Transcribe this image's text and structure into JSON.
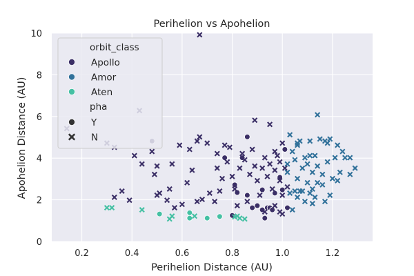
{
  "chart_data": {
    "type": "scatter",
    "title": "Perihelion vs Apohelion",
    "xlabel": "Perihelion Distance (AU)",
    "ylabel": "Apohelion Distance (AU)",
    "xlim": [
      0.08,
      1.36
    ],
    "ylim": [
      0,
      10
    ],
    "xticks": [
      "0.2",
      "0.4",
      "0.6",
      "0.8",
      "1.0",
      "1.2"
    ],
    "yticks": [
      "0",
      "2",
      "4",
      "6",
      "8",
      "10"
    ],
    "grid": true,
    "background": "#eaeaf2",
    "legend": {
      "position": "top-left",
      "hue_title": "orbit_class",
      "style_title": "pha",
      "hue_entries": [
        {
          "label": "Apollo",
          "color": "#3b2f66"
        },
        {
          "label": "Amor",
          "color": "#31719a"
        },
        {
          "label": "Aten",
          "color": "#45c0a3"
        }
      ],
      "style_entries": [
        {
          "label": "Y",
          "marker": "circle"
        },
        {
          "label": "N",
          "marker": "x"
        }
      ]
    },
    "series": [
      {
        "name": "Apollo",
        "pha": "Y",
        "color": "#3b2f66",
        "marker": "circle",
        "points": [
          [
            0.48,
            4.82
          ],
          [
            0.77,
            4.02
          ],
          [
            0.81,
            2.72
          ],
          [
            0.82,
            2.35
          ],
          [
            0.84,
            4.02
          ],
          [
            0.86,
            2.22
          ],
          [
            0.86,
            5.02
          ],
          [
            0.88,
            1.62
          ],
          [
            0.9,
            1.72
          ],
          [
            0.92,
            1.52
          ],
          [
            0.92,
            2.48
          ],
          [
            0.94,
            1.62
          ],
          [
            0.95,
            1.62
          ],
          [
            0.96,
            1.52
          ],
          [
            0.97,
            2.32
          ],
          [
            0.99,
            3.08
          ],
          [
            0.8,
            1.25
          ],
          [
            0.93,
            1.12
          ],
          [
            1.0,
            2.48
          ],
          [
            1.01,
            4.42
          ],
          [
            1.02,
            1.62
          ]
        ]
      },
      {
        "name": "Apollo",
        "pha": "N",
        "color": "#3b2f66",
        "marker": "x",
        "points": [
          [
            0.14,
            5.42
          ],
          [
            0.3,
            4.72
          ],
          [
            0.33,
            4.52
          ],
          [
            0.33,
            2.12
          ],
          [
            0.36,
            2.42
          ],
          [
            0.39,
            1.98
          ],
          [
            0.41,
            4.12
          ],
          [
            0.43,
            6.28
          ],
          [
            0.44,
            3.72
          ],
          [
            0.48,
            4.32
          ],
          [
            0.49,
            3.22
          ],
          [
            0.5,
            3.62
          ],
          [
            0.5,
            2.22
          ],
          [
            0.51,
            2.32
          ],
          [
            0.54,
            1.98
          ],
          [
            0.55,
            2.52
          ],
          [
            0.56,
            3.72
          ],
          [
            0.57,
            1.62
          ],
          [
            0.59,
            4.62
          ],
          [
            0.6,
            1.78
          ],
          [
            0.62,
            2.82
          ],
          [
            0.63,
            4.42
          ],
          [
            0.64,
            3.42
          ],
          [
            0.66,
            4.82
          ],
          [
            0.66,
            1.92
          ],
          [
            0.67,
            5.02
          ],
          [
            0.67,
            9.92
          ],
          [
            0.68,
            2.02
          ],
          [
            0.7,
            4.72
          ],
          [
            0.71,
            2.32
          ],
          [
            0.73,
            1.92
          ],
          [
            0.74,
            3.52
          ],
          [
            0.74,
            4.22
          ],
          [
            0.75,
            2.42
          ],
          [
            0.76,
            3.02
          ],
          [
            0.77,
            4.62
          ],
          [
            0.78,
            3.82
          ],
          [
            0.79,
            4.52
          ],
          [
            0.8,
            3.12
          ],
          [
            0.81,
            2.52
          ],
          [
            0.82,
            1.72
          ],
          [
            0.83,
            3.52
          ],
          [
            0.84,
            4.22
          ],
          [
            0.85,
            3.92
          ],
          [
            0.86,
            1.92
          ],
          [
            0.87,
            3.22
          ],
          [
            0.88,
            4.42
          ],
          [
            0.89,
            5.82
          ],
          [
            0.89,
            3.62
          ],
          [
            0.9,
            2.92
          ],
          [
            0.91,
            2.22
          ],
          [
            0.92,
            3.52
          ],
          [
            0.93,
            1.42
          ],
          [
            0.93,
            4.02
          ],
          [
            0.94,
            3.12
          ],
          [
            0.95,
            5.62
          ],
          [
            0.95,
            3.72
          ],
          [
            0.96,
            2.52
          ],
          [
            0.97,
            3.42
          ],
          [
            0.97,
            1.72
          ],
          [
            0.98,
            4.12
          ],
          [
            0.99,
            2.92
          ],
          [
            0.99,
            3.82
          ],
          [
            1.0,
            1.32
          ],
          [
            1.0,
            2.22
          ],
          [
            1.01,
            3.52
          ],
          [
            1.02,
            2.62
          ],
          [
            0.97,
            4.32
          ],
          [
            0.99,
            1.42
          ],
          [
            1.0,
            4.72
          ]
        ]
      },
      {
        "name": "Amor",
        "pha": "N",
        "color": "#31719a",
        "marker": "x",
        "points": [
          [
            1.02,
            3.72
          ],
          [
            1.02,
            3.32
          ],
          [
            1.03,
            5.12
          ],
          [
            1.03,
            2.32
          ],
          [
            1.04,
            4.32
          ],
          [
            1.04,
            1.52
          ],
          [
            1.05,
            3.92
          ],
          [
            1.05,
            2.42
          ],
          [
            1.06,
            4.62
          ],
          [
            1.06,
            2.12
          ],
          [
            1.06,
            3.02
          ],
          [
            1.07,
            4.82
          ],
          [
            1.07,
            2.42
          ],
          [
            1.08,
            3.52
          ],
          [
            1.09,
            4.02
          ],
          [
            1.09,
            1.92
          ],
          [
            1.1,
            2.82
          ],
          [
            1.1,
            3.72
          ],
          [
            1.11,
            4.12
          ],
          [
            1.11,
            2.32
          ],
          [
            1.11,
            4.82
          ],
          [
            1.12,
            1.82
          ],
          [
            1.12,
            3.32
          ],
          [
            1.12,
            2.52
          ],
          [
            1.13,
            4.12
          ],
          [
            1.13,
            2.12
          ],
          [
            1.14,
            3.62
          ],
          [
            1.14,
            6.08
          ],
          [
            1.14,
            2.82
          ],
          [
            1.15,
            4.92
          ],
          [
            1.16,
            3.22
          ],
          [
            1.16,
            2.72
          ],
          [
            1.17,
            4.82
          ],
          [
            1.17,
            1.92
          ],
          [
            1.18,
            3.82
          ],
          [
            1.18,
            4.72
          ],
          [
            1.19,
            2.22
          ],
          [
            1.19,
            4.92
          ],
          [
            1.2,
            3.02
          ],
          [
            1.21,
            4.02
          ],
          [
            1.22,
            2.92
          ],
          [
            1.22,
            4.62
          ],
          [
            1.23,
            3.32
          ],
          [
            1.24,
            4.32
          ],
          [
            1.25,
            4.02
          ],
          [
            1.27,
            4.02
          ],
          [
            1.27,
            3.22
          ],
          [
            1.29,
            3.52
          ],
          [
            1.06,
            4.72
          ],
          [
            1.08,
            2.42
          ]
        ]
      },
      {
        "name": "Aten",
        "pha": "Y",
        "color": "#45c0a3",
        "marker": "circle",
        "points": [
          [
            0.51,
            1.32
          ],
          [
            0.63,
            1.12
          ],
          [
            0.63,
            1.38
          ],
          [
            0.7,
            1.12
          ],
          [
            0.75,
            1.2
          ]
        ]
      },
      {
        "name": "Aten",
        "pha": "N",
        "color": "#45c0a3",
        "marker": "x",
        "points": [
          [
            0.3,
            1.62
          ],
          [
            0.32,
            1.62
          ],
          [
            0.44,
            1.52
          ],
          [
            0.55,
            1.08
          ],
          [
            0.56,
            1.22
          ],
          [
            0.65,
            1.22
          ],
          [
            0.81,
            1.18
          ],
          [
            0.83,
            1.12
          ],
          [
            0.85,
            1.08
          ],
          [
            0.82,
            1.22
          ]
        ]
      }
    ]
  }
}
